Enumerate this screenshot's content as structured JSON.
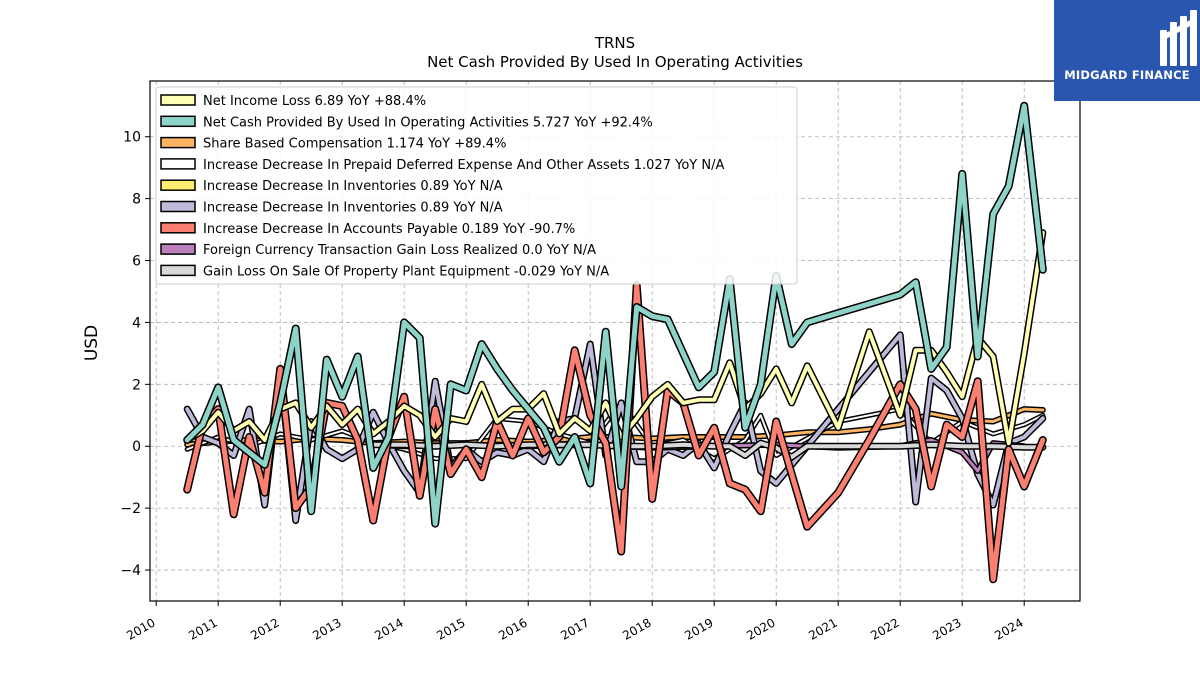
{
  "logo": {
    "text": "MIDGARD FINANCE"
  },
  "chart_data": {
    "type": "line",
    "title": "TRNS",
    "subtitle": "Net Cash Provided By Used In Operating Activities",
    "ylabel": "USD",
    "xlim": [
      2009.9,
      2024.9
    ],
    "ylim": [
      -5.0,
      11.8
    ],
    "yticks": [
      -4,
      -2,
      0,
      2,
      4,
      6,
      8,
      10
    ],
    "xticks": [
      "2010",
      "2011",
      "2012",
      "2013",
      "2014",
      "2015",
      "2016",
      "2017",
      "2018",
      "2019",
      "2020",
      "2021",
      "2022",
      "2023",
      "2024"
    ],
    "grid": true,
    "legend_position": "top-left",
    "series": [
      {
        "name": "Net Cash Provided By Used In Operating Activities",
        "legend": "Net Cash Provided By Used In Operating Activities  5.727 YoY +92.4%",
        "color": "#8dd3c7",
        "width": 5,
        "x": [
          2010.5,
          2010.75,
          2011.0,
          2011.25,
          2011.5,
          2011.75,
          2012.0,
          2012.25,
          2012.5,
          2012.75,
          2013.0,
          2013.25,
          2013.5,
          2013.75,
          2014.0,
          2014.25,
          2014.5,
          2014.75,
          2015.0,
          2015.25,
          2015.5,
          2015.75,
          2016.0,
          2016.25,
          2016.5,
          2016.75,
          2017.0,
          2017.25,
          2017.5,
          2017.75,
          2018.0,
          2018.25,
          2018.5,
          2018.75,
          2019.0,
          2019.25,
          2019.5,
          2019.75,
          2020.0,
          2020.25,
          2020.5,
          2021.0,
          2021.5,
          2022.0,
          2022.25,
          2022.5,
          2022.75,
          2023.0,
          2023.25,
          2023.5,
          2023.75,
          2024.0,
          2024.3
        ],
        "y": [
          0.2,
          0.7,
          1.9,
          0.2,
          -0.2,
          -0.6,
          1.4,
          3.8,
          -2.1,
          2.8,
          1.6,
          2.9,
          -0.7,
          0.3,
          4.0,
          3.5,
          -2.5,
          2.0,
          1.8,
          3.3,
          2.5,
          1.8,
          1.2,
          0.6,
          -0.5,
          0.3,
          -1.2,
          3.7,
          -1.3,
          4.5,
          4.2,
          4.1,
          3.0,
          1.9,
          2.4,
          5.4,
          0.6,
          2.0,
          5.5,
          3.3,
          4.0,
          4.3,
          4.6,
          4.9,
          5.3,
          2.5,
          3.2,
          8.8,
          2.9,
          7.5,
          8.4,
          11.0,
          5.7
        ]
      },
      {
        "name": "Net Income Loss",
        "legend": "Net Income Loss  6.89 YoY +88.4%",
        "color": "#ffffb3",
        "width": 4,
        "x": [
          2010.5,
          2010.75,
          2011.0,
          2011.25,
          2011.5,
          2011.75,
          2012.0,
          2012.25,
          2012.5,
          2012.75,
          2013.0,
          2013.25,
          2013.5,
          2013.75,
          2014.0,
          2014.25,
          2014.5,
          2014.75,
          2015.0,
          2015.25,
          2015.5,
          2015.75,
          2016.0,
          2016.25,
          2016.5,
          2016.75,
          2017.0,
          2017.25,
          2017.5,
          2017.75,
          2018.0,
          2018.25,
          2018.5,
          2018.75,
          2019.0,
          2019.25,
          2019.5,
          2019.75,
          2020.0,
          2020.25,
          2020.5,
          2021.0,
          2021.5,
          2022.0,
          2022.25,
          2022.5,
          2022.75,
          2023.0,
          2023.25,
          2023.5,
          2023.75,
          2024.0,
          2024.3
        ],
        "y": [
          0.2,
          0.5,
          1.1,
          0.5,
          0.8,
          0.2,
          1.2,
          1.4,
          0.6,
          1.3,
          0.7,
          1.2,
          0.4,
          0.8,
          1.3,
          1.0,
          0.3,
          0.9,
          0.8,
          2.0,
          0.8,
          1.2,
          1.2,
          1.7,
          0.4,
          0.9,
          0.5,
          1.4,
          0.3,
          0.9,
          1.6,
          2.0,
          1.4,
          1.5,
          1.5,
          2.7,
          1.2,
          1.7,
          2.5,
          1.4,
          2.6,
          0.6,
          3.7,
          1.0,
          3.1,
          3.1,
          2.4,
          1.6,
          3.5,
          2.9,
          0.1,
          3.0,
          6.9
        ]
      },
      {
        "name": "Share Based Compensation",
        "legend": "Share Based Compensation  1.174 YoY +89.4%",
        "color": "#fdb462",
        "width": 3,
        "x": [
          2010.5,
          2011.0,
          2011.5,
          2012.0,
          2012.5,
          2013.0,
          2013.5,
          2014.0,
          2014.5,
          2015.0,
          2015.5,
          2016.0,
          2016.5,
          2017.0,
          2017.5,
          2018.0,
          2018.5,
          2019.0,
          2019.5,
          2020.0,
          2020.5,
          2021.0,
          2021.5,
          2022.0,
          2022.5,
          2023.0,
          2023.5,
          2024.0,
          2024.3
        ],
        "y": [
          0.05,
          0.15,
          0.2,
          0.15,
          0.25,
          0.2,
          0.1,
          0.15,
          0.1,
          0.1,
          0.2,
          0.15,
          0.2,
          0.3,
          0.3,
          0.25,
          0.3,
          0.3,
          0.3,
          0.35,
          0.45,
          0.45,
          0.55,
          0.7,
          1.05,
          0.85,
          0.8,
          1.2,
          1.17
        ]
      },
      {
        "name": "Increase Decrease In Prepaid Deferred Expense And Other Assets",
        "legend": "Increase Decrease In Prepaid Deferred Expense And Other Assets  1.027 YoY N/A",
        "color": "#ffffff",
        "width": 2,
        "x": [
          2010.5,
          2011.0,
          2011.5,
          2012.0,
          2012.5,
          2013.0,
          2013.5,
          2014.0,
          2014.5,
          2015.0,
          2015.5,
          2016.0,
          2016.5,
          2017.0,
          2017.5,
          2018.0,
          2018.5,
          2019.0,
          2019.5,
          2019.75,
          2020.0,
          2021.0,
          2022.0,
          2022.5,
          2023.0,
          2023.5,
          2024.0,
          2024.3
        ],
        "y": [
          -0.1,
          0.3,
          0.0,
          0.4,
          0.2,
          0.5,
          0.1,
          -0.1,
          -0.4,
          -0.4,
          0.9,
          0.8,
          0.4,
          0.1,
          1.4,
          0.0,
          0.2,
          -0.4,
          0.2,
          1.0,
          -0.3,
          0.8,
          1.2,
          0.1,
          0.8,
          0.4,
          0.7,
          1.0
        ]
      },
      {
        "name": "Increase Decrease In Inventories",
        "legend": "Increase Decrease In Inventories  0.89 YoY N/A",
        "color": "#ffed6f",
        "width": 3,
        "x": [],
        "y": []
      },
      {
        "name": "Increase Decrease In Inventories",
        "legend": "Increase Decrease In Inventories  0.89 YoY N/A",
        "color": "#bebada",
        "width": 4,
        "x": [
          2010.5,
          2010.75,
          2011.0,
          2011.25,
          2011.5,
          2011.75,
          2012.0,
          2012.25,
          2012.5,
          2012.75,
          2013.0,
          2013.25,
          2013.5,
          2013.75,
          2014.0,
          2014.25,
          2014.5,
          2014.75,
          2015.0,
          2015.25,
          2015.5,
          2015.75,
          2016.0,
          2016.25,
          2016.5,
          2016.75,
          2017.0,
          2017.25,
          2017.5,
          2017.75,
          2018.0,
          2018.25,
          2018.5,
          2018.75,
          2019.0,
          2019.25,
          2019.5,
          2019.75,
          2020.0,
          2021.0,
          2022.0,
          2022.25,
          2022.5,
          2022.75,
          2023.0,
          2023.25,
          2023.5,
          2023.75,
          2024.0,
          2024.3
        ],
        "y": [
          1.2,
          0.3,
          0.1,
          -0.3,
          1.2,
          -1.9,
          2.4,
          -2.4,
          0.8,
          -0.1,
          -0.4,
          -0.1,
          1.1,
          0.1,
          -0.8,
          -1.5,
          2.1,
          -0.7,
          -0.1,
          -0.5,
          -0.2,
          -0.3,
          -0.1,
          -0.5,
          0.8,
          0.9,
          3.3,
          -0.3,
          1.4,
          -0.5,
          -0.5,
          -0.1,
          -0.3,
          0.1,
          -0.7,
          0.4,
          1.4,
          -0.8,
          -1.2,
          1.2,
          3.6,
          -1.8,
          2.2,
          1.8,
          0.9,
          -0.9,
          -1.9,
          0.1,
          0.3,
          0.9
        ]
      },
      {
        "name": "Increase Decrease In Accounts Payable",
        "legend": "Increase Decrease In Accounts Payable  0.189 YoY -90.7%",
        "color": "#fb8072",
        "width": 5,
        "x": [
          2010.5,
          2010.75,
          2011.0,
          2011.25,
          2011.5,
          2011.75,
          2012.0,
          2012.25,
          2012.5,
          2012.75,
          2013.0,
          2013.25,
          2013.5,
          2013.75,
          2014.0,
          2014.25,
          2014.5,
          2014.75,
          2015.0,
          2015.25,
          2015.5,
          2015.75,
          2016.0,
          2016.25,
          2016.5,
          2016.75,
          2017.0,
          2017.25,
          2017.5,
          2017.75,
          2018.0,
          2018.25,
          2018.5,
          2018.75,
          2019.0,
          2019.25,
          2019.5,
          2019.75,
          2020.0,
          2020.5,
          2021.0,
          2021.5,
          2022.0,
          2022.25,
          2022.5,
          2022.75,
          2023.0,
          2023.25,
          2023.5,
          2023.75,
          2024.0,
          2024.3
        ],
        "y": [
          -1.4,
          0.7,
          1.2,
          -2.2,
          0.3,
          -1.5,
          2.5,
          -2.0,
          -1.3,
          1.4,
          1.3,
          0.2,
          -2.4,
          0.3,
          1.6,
          -1.6,
          1.2,
          -0.9,
          -0.1,
          -1.0,
          0.8,
          -0.3,
          0.9,
          -0.2,
          0.3,
          3.1,
          1.0,
          0.1,
          -3.4,
          5.2,
          -1.7,
          1.8,
          1.4,
          -0.3,
          0.6,
          -1.2,
          -1.4,
          -2.1,
          0.8,
          -2.6,
          -1.5,
          0.2,
          2.0,
          1.2,
          -1.3,
          0.7,
          0.3,
          2.1,
          -4.3,
          -0.1,
          -1.3,
          0.2
        ]
      },
      {
        "name": "Foreign Currency Transaction Gain Loss Realized",
        "legend": "Foreign Currency Transaction Gain Loss Realized  0.0 YoY N/A",
        "color": "#bc80bd",
        "width": 3,
        "x": [
          2013.5,
          2014.0,
          2015.0,
          2016.0,
          2017.0,
          2018.0,
          2019.0,
          2020.0,
          2021.0,
          2022.0,
          2022.5,
          2023.0,
          2023.25,
          2023.5,
          2024.0
        ],
        "y": [
          0.05,
          0.0,
          0.05,
          0.0,
          0.05,
          -0.05,
          0.0,
          0.05,
          -0.05,
          0.0,
          0.2,
          -0.2,
          -0.8,
          0.1,
          0.0
        ]
      },
      {
        "name": "Gain Loss On Sale Of Property Plant Equipment",
        "legend": "Gain Loss On Sale Of Property Plant Equipment  -0.029 YoY N/A",
        "color": "#d9d9d9",
        "width": 4,
        "x": [
          2013.5,
          2014.0,
          2014.5,
          2015.0,
          2015.5,
          2016.0,
          2016.5,
          2017.0,
          2017.5,
          2018.0,
          2018.5,
          2019.0,
          2019.25,
          2019.5,
          2019.75,
          2020.0,
          2020.25,
          2020.5,
          2021.0,
          2021.5,
          2022.0,
          2022.5,
          2023.0,
          2023.5,
          2024.0,
          2024.3
        ],
        "y": [
          0.05,
          0.05,
          0.0,
          0.05,
          0.0,
          0.05,
          0.05,
          0.05,
          0.0,
          0.0,
          0.05,
          0.0,
          0.0,
          -0.3,
          0.1,
          -0.05,
          -0.35,
          0.0,
          0.0,
          0.0,
          0.0,
          0.05,
          0.0,
          0.0,
          -0.03,
          -0.03
        ]
      }
    ]
  }
}
